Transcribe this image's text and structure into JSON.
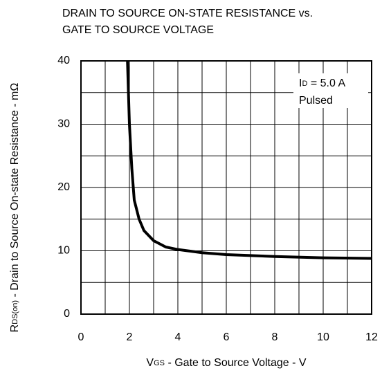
{
  "chart_data": {
    "type": "line",
    "title": [
      "DRAIN TO SOURCE ON-STATE RESISTANCE vs.",
      "GATE TO SOURCE VOLTAGE"
    ],
    "xlabel": [
      "V",
      "GS",
      " - Gate to Source Voltage - V"
    ],
    "ylabel": [
      "R",
      "DS(on)",
      " - Drain to Source On-state Resistance - mΩ"
    ],
    "annotation": [
      [
        "I",
        "D",
        " = 5.0 A"
      ],
      "Pulsed"
    ],
    "xlim": [
      0,
      12
    ],
    "ylim": [
      0,
      40
    ],
    "xticks": [
      0,
      2,
      4,
      6,
      8,
      10,
      12
    ],
    "yticks": [
      0,
      10,
      20,
      30,
      40
    ],
    "xminor": [
      1,
      3,
      5,
      7,
      9,
      11
    ],
    "yminor": [
      5,
      15,
      25,
      35
    ],
    "grid": true,
    "series": [
      {
        "color": "#000000",
        "x": [
          1.92,
          2.0,
          2.1,
          2.2,
          2.4,
          2.6,
          3.0,
          3.5,
          4.0,
          5.0,
          6.0,
          8.0,
          10.0,
          12.0
        ],
        "values": [
          40,
          30,
          23,
          18,
          15,
          13.2,
          11.6,
          10.6,
          10.2,
          9.7,
          9.4,
          9.1,
          8.9,
          8.8
        ]
      }
    ]
  }
}
